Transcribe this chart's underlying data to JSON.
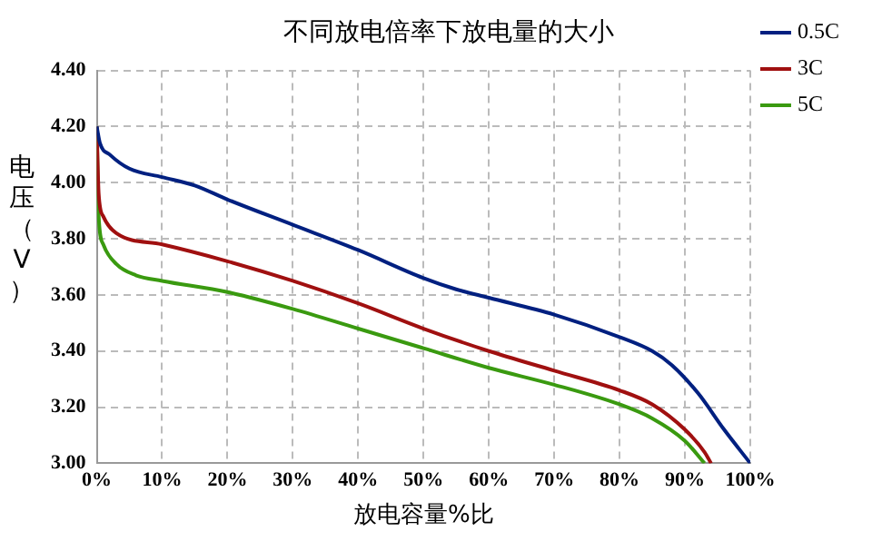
{
  "chart_data": {
    "type": "line",
    "title": "不同放电倍率下放电量的大小",
    "xlabel": "放电容量%比",
    "ylabel": "电压（V）",
    "xlim": [
      0,
      100
    ],
    "ylim": [
      3.0,
      4.4
    ],
    "xticks": [
      {
        "value": 0,
        "label": "0%"
      },
      {
        "value": 10,
        "label": "10%"
      },
      {
        "value": 20,
        "label": "20%"
      },
      {
        "value": 30,
        "label": "30%"
      },
      {
        "value": 40,
        "label": "40%"
      },
      {
        "value": 50,
        "label": "50%"
      },
      {
        "value": 60,
        "label": "60%"
      },
      {
        "value": 70,
        "label": "70%"
      },
      {
        "value": 80,
        "label": "80%"
      },
      {
        "value": 90,
        "label": "90%"
      },
      {
        "value": 100,
        "label": "100%"
      }
    ],
    "yticks": [
      {
        "value": 3.0,
        "label": "3.00"
      },
      {
        "value": 3.2,
        "label": "3.20"
      },
      {
        "value": 3.4,
        "label": "3.40"
      },
      {
        "value": 3.6,
        "label": "3.60"
      },
      {
        "value": 3.8,
        "label": "3.80"
      },
      {
        "value": 4.0,
        "label": "4.00"
      },
      {
        "value": 4.2,
        "label": "4.20"
      },
      {
        "value": 4.4,
        "label": "4.40"
      }
    ],
    "grid": true,
    "legend": "right",
    "marker": "none",
    "line_style": "solid",
    "series": [
      {
        "name": "0.5C",
        "color": "#002080",
        "x": [
          0,
          0.5,
          2,
          5,
          10,
          15,
          20,
          30,
          40,
          50,
          55,
          60,
          70,
          80,
          85,
          88,
          92,
          96,
          100
        ],
        "values": [
          4.2,
          4.14,
          4.1,
          4.05,
          4.02,
          3.99,
          3.94,
          3.85,
          3.76,
          3.66,
          3.62,
          3.59,
          3.53,
          3.45,
          3.4,
          3.35,
          3.25,
          3.12,
          3.0
        ]
      },
      {
        "name": "3C",
        "color": "#a01010",
        "x": [
          0,
          0.3,
          1,
          3,
          10,
          20,
          30,
          40,
          50,
          60,
          70,
          80,
          85,
          90,
          93,
          94
        ],
        "values": [
          4.2,
          3.96,
          3.88,
          3.82,
          3.78,
          3.72,
          3.65,
          3.57,
          3.48,
          3.4,
          3.33,
          3.26,
          3.21,
          3.12,
          3.04,
          3.0
        ]
      },
      {
        "name": "5C",
        "color": "#3a9a10",
        "x": [
          0,
          0.3,
          1,
          3,
          6,
          10,
          20,
          30,
          40,
          50,
          60,
          70,
          80,
          85,
          90,
          93
        ],
        "values": [
          4.2,
          3.88,
          3.78,
          3.71,
          3.67,
          3.65,
          3.61,
          3.55,
          3.48,
          3.41,
          3.34,
          3.28,
          3.21,
          3.16,
          3.08,
          3.0
        ]
      }
    ]
  }
}
